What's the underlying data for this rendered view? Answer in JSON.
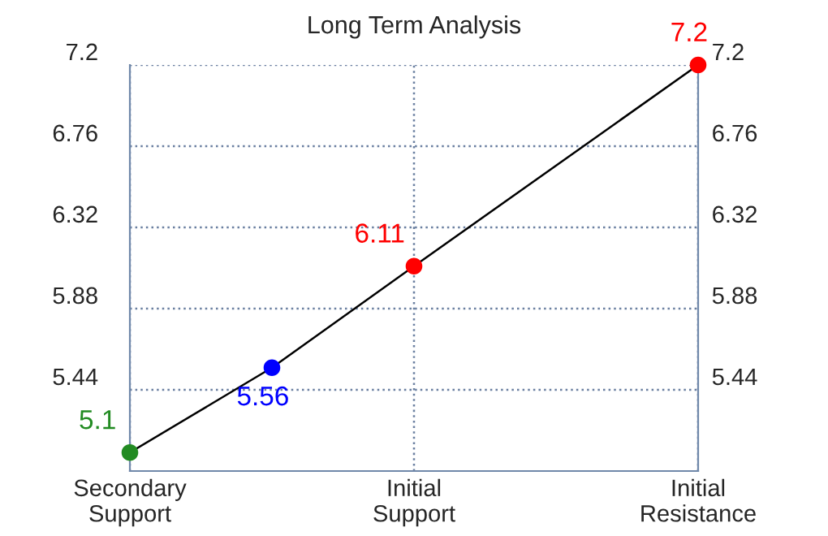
{
  "chart_data": {
    "type": "line",
    "title": "Long Term Analysis",
    "categories": [
      "Secondary\nSupport",
      null,
      "Initial\nSupport",
      null,
      "Initial\nResistance"
    ],
    "values": [
      5.1,
      5.56,
      6.11,
      null,
      7.2
    ],
    "colors": [
      "#228b22",
      "#0000ff",
      "#ff0000",
      null,
      "#ff0000"
    ],
    "color": "#000000",
    "marker": "circle",
    "line_style": "solid",
    "data_labels": true,
    "ylim": [
      5.0,
      7.2
    ],
    "yticks": [
      5.44,
      5.88,
      6.32,
      6.76,
      7.2
    ],
    "y2lim": [
      5.0,
      7.2
    ],
    "y2ticks": [
      5.44,
      5.88,
      6.32,
      6.76,
      7.2
    ],
    "grid": true
  }
}
